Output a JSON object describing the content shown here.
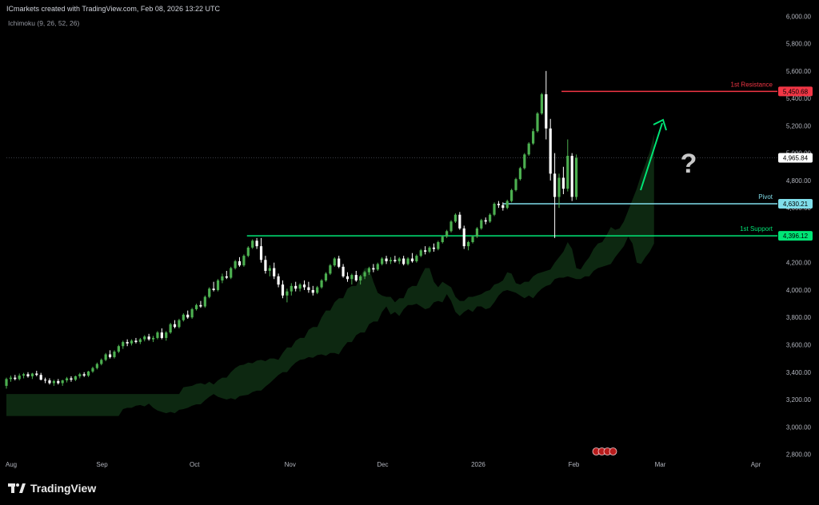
{
  "header": {
    "attribution": "ICmarkets created with TradingView.com, Feb 08, 2026 13:22 UTC",
    "indicator": "Ichimoku (9, 26, 52, 26)"
  },
  "brand": {
    "name": "TradingView",
    "icon": "tradingview-logo-icon"
  },
  "colors": {
    "background": "#000000",
    "bull": "#4caf50",
    "bear": "#ffffff",
    "cloud": "#0e2a12",
    "resistance": "#f23645",
    "pivot": "#80deea",
    "support": "#00e676",
    "arrow": "#00e676"
  },
  "chart_data": {
    "type": "candlestick",
    "title": "",
    "y_axis": {
      "ticks": [
        "6,000.00",
        "5,800.00",
        "5,600.00",
        "5,400.00",
        "5,200.00",
        "5,000.00",
        "4,800.00",
        "4,600.00",
        "4,400.00",
        "4,200.00",
        "4,000.00",
        "3,800.00",
        "3,600.00",
        "3,400.00",
        "3,200.00",
        "3,000.00",
        "2,800.00"
      ],
      "range": [
        2780,
        6060
      ],
      "position": "right"
    },
    "x_axis": {
      "labels": [
        "Aug",
        "Sep",
        "Oct",
        "Nov",
        "Dec",
        "2026",
        "Feb",
        "Mar",
        "Apr"
      ],
      "label_days": [
        0,
        31,
        61,
        92,
        122,
        153,
        184,
        212,
        243
      ],
      "range_days": [
        0,
        250
      ]
    },
    "levels": [
      {
        "name": "1st Resistance",
        "value": 5450.68,
        "tag": "5,450.68",
        "color": "#f23645",
        "from_day": 180
      },
      {
        "name": "Pivot",
        "value": 4630.21,
        "tag": "4,630.21",
        "color": "#80deea",
        "from_day": 161
      },
      {
        "name": "1st Support",
        "value": 4396.12,
        "tag": "4,396.12",
        "color": "#00e676",
        "from_day": 78
      }
    ],
    "last_price": {
      "value": 4965.84,
      "tag": "4,965.84"
    },
    "annotation": {
      "symbol": "?",
      "arrow": "up"
    },
    "candles": [
      [
        0,
        3300,
        3360,
        3280,
        3350
      ],
      [
        1,
        3350,
        3375,
        3330,
        3360
      ],
      [
        2,
        3360,
        3380,
        3340,
        3350
      ],
      [
        3,
        3350,
        3390,
        3340,
        3375
      ],
      [
        4,
        3375,
        3395,
        3355,
        3385
      ],
      [
        5,
        3385,
        3400,
        3360,
        3370
      ],
      [
        6,
        3370,
        3395,
        3350,
        3390
      ],
      [
        7,
        3390,
        3410,
        3370,
        3380
      ],
      [
        8,
        3380,
        3395,
        3340,
        3345
      ],
      [
        9,
        3345,
        3360,
        3320,
        3340
      ],
      [
        10,
        3340,
        3355,
        3310,
        3320
      ],
      [
        11,
        3320,
        3345,
        3300,
        3335
      ],
      [
        12,
        3335,
        3350,
        3310,
        3320
      ],
      [
        13,
        3320,
        3345,
        3300,
        3340
      ],
      [
        14,
        3340,
        3365,
        3325,
        3355
      ],
      [
        15,
        3355,
        3370,
        3330,
        3345
      ],
      [
        16,
        3345,
        3375,
        3335,
        3370
      ],
      [
        17,
        3370,
        3395,
        3355,
        3385
      ],
      [
        18,
        3385,
        3400,
        3365,
        3375
      ],
      [
        19,
        3375,
        3410,
        3365,
        3405
      ],
      [
        20,
        3405,
        3440,
        3395,
        3430
      ],
      [
        21,
        3430,
        3470,
        3420,
        3460
      ],
      [
        22,
        3460,
        3500,
        3450,
        3490
      ],
      [
        23,
        3490,
        3540,
        3480,
        3530
      ],
      [
        24,
        3530,
        3560,
        3500,
        3510
      ],
      [
        25,
        3510,
        3560,
        3500,
        3550
      ],
      [
        26,
        3550,
        3600,
        3540,
        3590
      ],
      [
        27,
        3590,
        3630,
        3570,
        3620
      ],
      [
        28,
        3620,
        3640,
        3590,
        3610
      ],
      [
        29,
        3610,
        3640,
        3595,
        3630
      ],
      [
        30,
        3630,
        3650,
        3610,
        3620
      ],
      [
        31,
        3620,
        3650,
        3605,
        3640
      ],
      [
        32,
        3640,
        3670,
        3625,
        3660
      ],
      [
        33,
        3660,
        3680,
        3630,
        3640
      ],
      [
        34,
        3640,
        3665,
        3620,
        3650
      ],
      [
        35,
        3650,
        3700,
        3640,
        3690
      ],
      [
        36,
        3690,
        3720,
        3640,
        3650
      ],
      [
        37,
        3650,
        3700,
        3630,
        3690
      ],
      [
        38,
        3690,
        3760,
        3680,
        3750
      ],
      [
        39,
        3750,
        3780,
        3720,
        3730
      ],
      [
        40,
        3730,
        3790,
        3720,
        3780
      ],
      [
        41,
        3780,
        3830,
        3770,
        3820
      ],
      [
        42,
        3820,
        3850,
        3790,
        3800
      ],
      [
        43,
        3800,
        3870,
        3790,
        3860
      ],
      [
        44,
        3860,
        3900,
        3850,
        3890
      ],
      [
        45,
        3890,
        3920,
        3870,
        3880
      ],
      [
        46,
        3880,
        3960,
        3870,
        3950
      ],
      [
        47,
        3950,
        4020,
        3940,
        4010
      ],
      [
        48,
        4010,
        4060,
        3990,
        4000
      ],
      [
        49,
        4000,
        4080,
        3990,
        4070
      ],
      [
        50,
        4070,
        4120,
        4050,
        4100
      ],
      [
        51,
        4100,
        4140,
        4080,
        4090
      ],
      [
        52,
        4090,
        4170,
        4080,
        4160
      ],
      [
        53,
        4160,
        4220,
        4150,
        4210
      ],
      [
        54,
        4210,
        4240,
        4170,
        4180
      ],
      [
        55,
        4180,
        4260,
        4170,
        4250
      ],
      [
        56,
        4250,
        4320,
        4240,
        4310
      ],
      [
        57,
        4310,
        4370,
        4300,
        4360
      ],
      [
        58,
        4360,
        4380,
        4300,
        4320
      ],
      [
        59,
        4320,
        4380,
        4200,
        4220
      ],
      [
        60,
        4220,
        4250,
        4120,
        4140
      ],
      [
        61,
        4140,
        4180,
        4100,
        4160
      ],
      [
        62,
        4160,
        4200,
        4080,
        4100
      ],
      [
        63,
        4100,
        4120,
        4020,
        4040
      ],
      [
        64,
        4040,
        4070,
        3940,
        3960
      ],
      [
        65,
        3960,
        4010,
        3910,
        3990
      ],
      [
        66,
        3990,
        4050,
        3960,
        4030
      ],
      [
        67,
        4030,
        4060,
        3990,
        4010
      ],
      [
        68,
        4010,
        4050,
        3990,
        4040
      ],
      [
        69,
        4040,
        4070,
        4000,
        4020
      ],
      [
        70,
        4020,
        4060,
        3980,
        4000
      ],
      [
        71,
        4000,
        4030,
        3960,
        3980
      ],
      [
        72,
        3980,
        4030,
        3970,
        4020
      ],
      [
        73,
        4020,
        4080,
        4010,
        4070
      ],
      [
        74,
        4070,
        4130,
        4060,
        4120
      ],
      [
        75,
        4120,
        4190,
        4110,
        4180
      ],
      [
        76,
        4180,
        4240,
        4170,
        4230
      ],
      [
        77,
        4230,
        4250,
        4160,
        4170
      ],
      [
        78,
        4170,
        4190,
        4090,
        4100
      ],
      [
        79,
        4100,
        4130,
        4060,
        4080
      ],
      [
        80,
        4080,
        4120,
        4040,
        4110
      ],
      [
        81,
        4110,
        4140,
        4060,
        4070
      ],
      [
        82,
        4070,
        4110,
        4040,
        4100
      ],
      [
        83,
        4100,
        4140,
        4080,
        4130
      ],
      [
        84,
        4130,
        4170,
        4110,
        4160
      ],
      [
        85,
        4160,
        4190,
        4130,
        4150
      ],
      [
        86,
        4150,
        4200,
        4140,
        4190
      ],
      [
        87,
        4190,
        4240,
        4180,
        4230
      ],
      [
        88,
        4230,
        4250,
        4190,
        4210
      ],
      [
        89,
        4210,
        4240,
        4190,
        4220
      ],
      [
        90,
        4220,
        4250,
        4200,
        4210
      ],
      [
        91,
        4210,
        4240,
        4190,
        4230
      ],
      [
        92,
        4230,
        4250,
        4180,
        4190
      ],
      [
        93,
        4190,
        4240,
        4180,
        4230
      ],
      [
        94,
        4230,
        4270,
        4200,
        4210
      ],
      [
        95,
        4210,
        4260,
        4200,
        4250
      ],
      [
        96,
        4250,
        4300,
        4240,
        4290
      ],
      [
        97,
        4290,
        4320,
        4260,
        4280
      ],
      [
        98,
        4280,
        4320,
        4270,
        4310
      ],
      [
        99,
        4310,
        4340,
        4280,
        4300
      ],
      [
        100,
        4300,
        4360,
        4290,
        4350
      ],
      [
        101,
        4350,
        4400,
        4340,
        4390
      ],
      [
        102,
        4390,
        4440,
        4380,
        4430
      ],
      [
        103,
        4430,
        4510,
        4420,
        4500
      ],
      [
        104,
        4500,
        4560,
        4490,
        4550
      ],
      [
        105,
        4550,
        4570,
        4440,
        4450
      ],
      [
        106,
        4450,
        4470,
        4300,
        4320
      ],
      [
        107,
        4320,
        4360,
        4290,
        4350
      ],
      [
        108,
        4350,
        4400,
        4340,
        4390
      ],
      [
        109,
        4390,
        4460,
        4380,
        4450
      ],
      [
        110,
        4450,
        4520,
        4440,
        4510
      ],
      [
        111,
        4510,
        4530,
        4480,
        4500
      ],
      [
        112,
        4500,
        4560,
        4490,
        4550
      ],
      [
        113,
        4550,
        4640,
        4540,
        4630
      ],
      [
        114,
        4630,
        4650,
        4600,
        4620
      ],
      [
        115,
        4620,
        4640,
        4580,
        4600
      ],
      [
        116,
        4600,
        4660,
        4590,
        4650
      ],
      [
        117,
        4650,
        4740,
        4640,
        4730
      ],
      [
        118,
        4730,
        4820,
        4720,
        4810
      ],
      [
        119,
        4810,
        4900,
        4800,
        4890
      ],
      [
        120,
        4890,
        5000,
        4880,
        4990
      ],
      [
        121,
        4990,
        5080,
        4980,
        5070
      ],
      [
        122,
        5070,
        5180,
        5060,
        5160
      ],
      [
        123,
        5160,
        5300,
        5150,
        5290
      ],
      [
        124,
        5290,
        5440,
        5280,
        5430
      ],
      [
        125,
        5430,
        5600,
        5100,
        5180
      ],
      [
        126,
        5180,
        5250,
        4800,
        4850
      ],
      [
        127,
        4850,
        5000,
        4380,
        4680
      ],
      [
        128,
        4680,
        4850,
        4600,
        4820
      ],
      [
        129,
        4820,
        4900,
        4700,
        4740
      ],
      [
        130,
        4740,
        5100,
        4720,
        4980
      ],
      [
        131,
        4980,
        5000,
        4650,
        4680
      ],
      [
        132,
        4680,
        4990,
        4660,
        4965
      ]
    ],
    "candle_day_map": {
      "first_day": 0,
      "day_step": 1.4
    }
  }
}
